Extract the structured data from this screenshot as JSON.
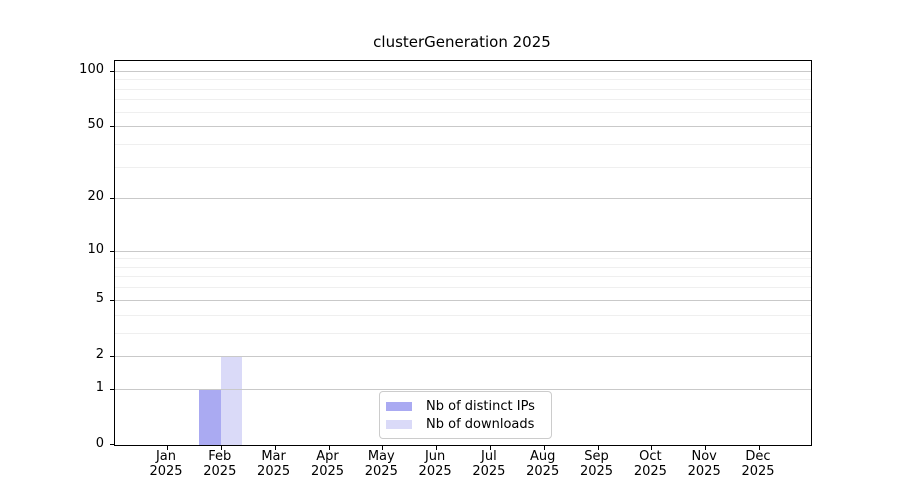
{
  "chart_data": {
    "type": "bar",
    "title": "clusterGeneration 2025",
    "categories": [
      "Jan",
      "Feb",
      "Mar",
      "Apr",
      "May",
      "Jun",
      "Jul",
      "Aug",
      "Sep",
      "Oct",
      "Nov",
      "Dec"
    ],
    "x_year_label": "2025",
    "series": [
      {
        "name": "Nb of distinct IPs",
        "color": "#aaaaf2",
        "values": [
          0,
          1,
          0,
          0,
          0,
          0,
          0,
          0,
          0,
          0,
          0,
          0
        ]
      },
      {
        "name": "Nb of downloads",
        "color": "#dadaf8",
        "values": [
          0,
          2,
          0,
          0,
          0,
          0,
          0,
          0,
          0,
          0,
          0,
          0
        ]
      }
    ],
    "y_scale": "log1p",
    "ylim": [
      0,
      113
    ],
    "y_ticks": [
      0,
      1,
      2,
      5,
      10,
      20,
      50,
      100
    ],
    "y_minor_ticks": [
      3,
      4,
      6,
      7,
      8,
      9,
      30,
      40,
      60,
      70,
      80,
      90
    ],
    "grid": true,
    "legend_position": "lower center",
    "colors": {
      "major_grid": "#c9c9c9",
      "minor_grid": "#efefef",
      "axis": "#000000",
      "background": "#ffffff",
      "text": "#000000"
    }
  }
}
